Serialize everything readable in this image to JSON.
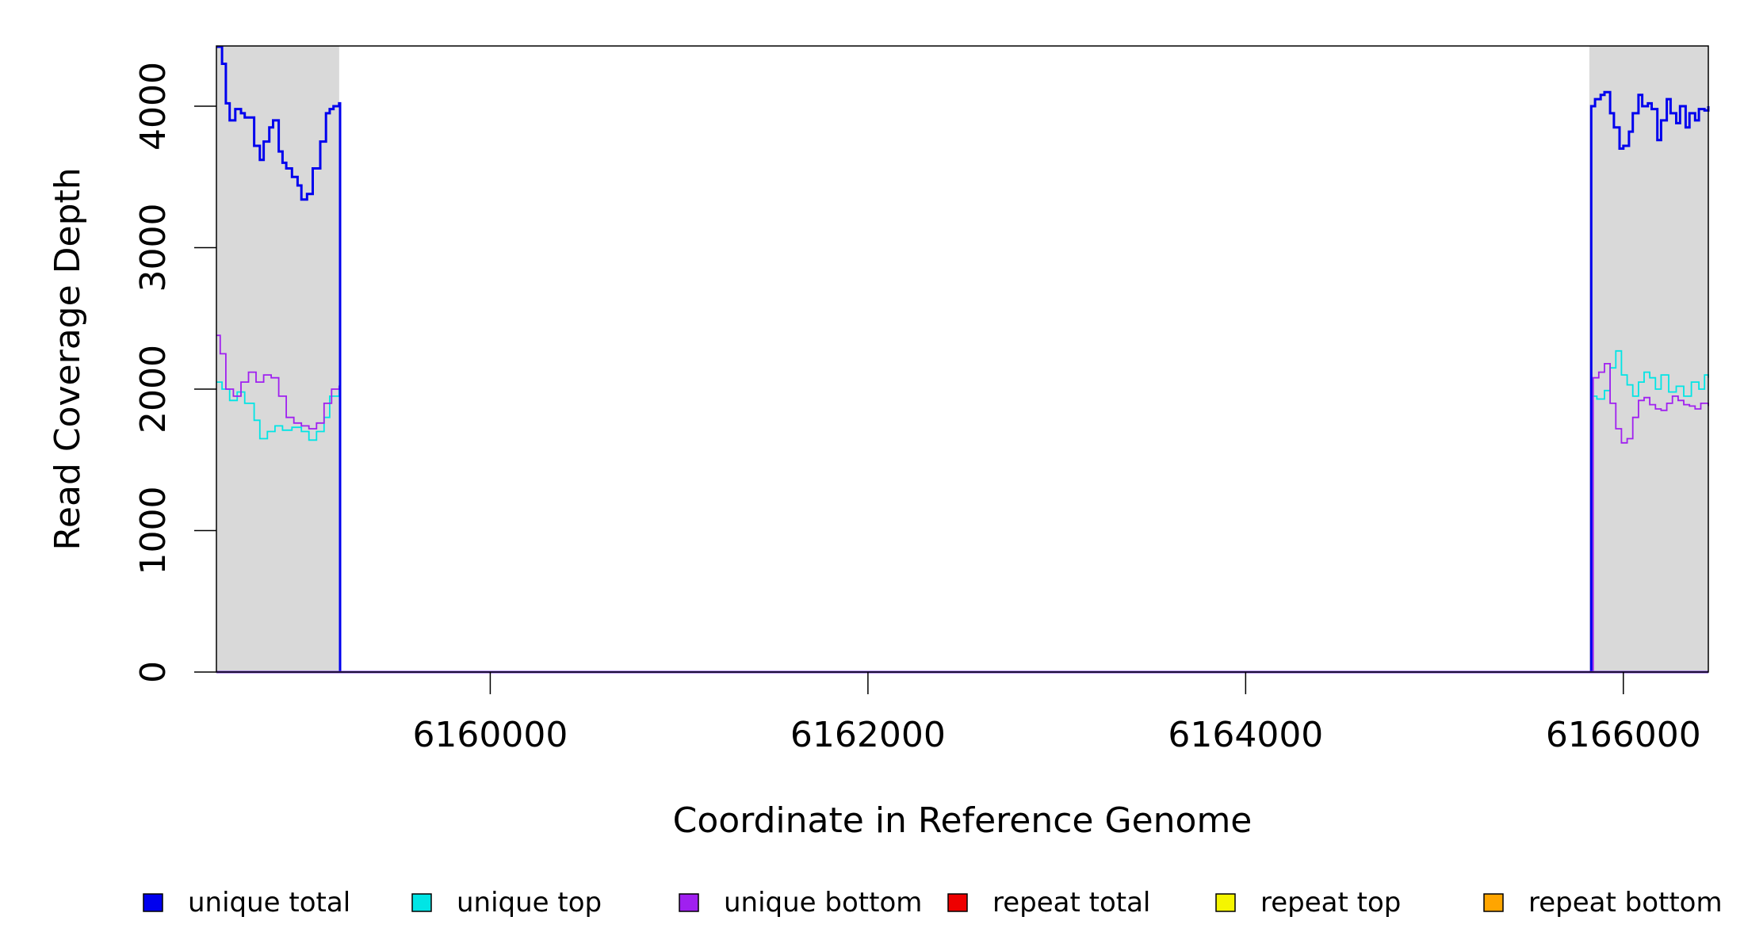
{
  "chart_data": {
    "type": "line",
    "title": "",
    "xlabel": "Coordinate in Reference Genome",
    "ylabel": "Read Coverage Depth",
    "xlim": [
      6158550,
      6166450
    ],
    "ylim": [
      0,
      4420
    ],
    "xticks": [
      6160000,
      6162000,
      6164000,
      6166000
    ],
    "xtick_labels": [
      "6160000",
      "6162000",
      "6164000",
      "6166000"
    ],
    "yticks": [
      0,
      1000,
      2000,
      3000,
      4000
    ],
    "ytick_labels": [
      "0",
      "1000",
      "2000",
      "3000",
      "4000"
    ],
    "grid": false,
    "legend": "bottom",
    "shaded_regions": [
      {
        "start": 6158550,
        "end": 6159200,
        "color": "#d9d9d9"
      },
      {
        "start": 6165820,
        "end": 6166450,
        "color": "#d9d9d9"
      }
    ],
    "series": [
      {
        "name": "unique total",
        "color": "#0000ee",
        "x": [
          6158550,
          6158580,
          6158600,
          6158620,
          6158650,
          6158680,
          6158700,
          6158750,
          6158780,
          6158800,
          6158830,
          6158850,
          6158880,
          6158900,
          6158920,
          6158950,
          6158980,
          6159000,
          6159030,
          6159060,
          6159100,
          6159130,
          6159150,
          6159170,
          6159200,
          6159205,
          6165820,
          6165830,
          6165850,
          6165880,
          6165900,
          6165930,
          6165950,
          6165980,
          6166000,
          6166030,
          6166050,
          6166080,
          6166100,
          6166130,
          6166150,
          6166180,
          6166200,
          6166230,
          6166250,
          6166280,
          6166300,
          6166330,
          6166350,
          6166380,
          6166400,
          6166430,
          6166450
        ],
        "y": [
          4420,
          4300,
          4020,
          3900,
          3980,
          3950,
          3920,
          3720,
          3620,
          3750,
          3850,
          3900,
          3680,
          3600,
          3560,
          3500,
          3440,
          3340,
          3380,
          3560,
          3750,
          3950,
          3980,
          4000,
          4020,
          0,
          0,
          4000,
          4050,
          4080,
          4100,
          3950,
          3850,
          3700,
          3720,
          3820,
          3950,
          4080,
          4000,
          4020,
          3980,
          3760,
          3900,
          4050,
          3950,
          3880,
          4000,
          3850,
          3950,
          3900,
          3980,
          3970,
          4000
        ]
      },
      {
        "name": "unique top",
        "color": "#00e5e5",
        "x": [
          6158550,
          6158580,
          6158620,
          6158660,
          6158700,
          6158750,
          6158780,
          6158820,
          6158860,
          6158900,
          6158950,
          6159000,
          6159040,
          6159080,
          6159120,
          6159150,
          6159200,
          6159205,
          6165820,
          6165830,
          6165860,
          6165900,
          6165930,
          6165960,
          6165990,
          6166020,
          6166050,
          6166080,
          6166110,
          6166140,
          6166170,
          6166200,
          6166240,
          6166280,
          6166320,
          6166360,
          6166400,
          6166430,
          6166450
        ],
        "y": [
          2050,
          2000,
          1920,
          1980,
          1900,
          1780,
          1650,
          1700,
          1740,
          1710,
          1730,
          1700,
          1640,
          1700,
          1800,
          1950,
          2000,
          0,
          0,
          1950,
          1930,
          1990,
          2150,
          2270,
          2100,
          2030,
          1950,
          2050,
          2120,
          2080,
          2000,
          2100,
          1980,
          2020,
          1950,
          2050,
          2000,
          2100,
          2080
        ]
      },
      {
        "name": "unique bottom",
        "color": "#a020f0",
        "x": [
          6158550,
          6158570,
          6158600,
          6158640,
          6158680,
          6158720,
          6158760,
          6158800,
          6158840,
          6158880,
          6158920,
          6158960,
          6159000,
          6159040,
          6159080,
          6159120,
          6159160,
          6159200,
          6159205,
          6165820,
          6165840,
          6165870,
          6165900,
          6165930,
          6165960,
          6165990,
          6166020,
          6166050,
          6166080,
          6166110,
          6166140,
          6166170,
          6166200,
          6166230,
          6166260,
          6166290,
          6166320,
          6166350,
          6166380,
          6166410,
          6166450
        ],
        "y": [
          2380,
          2250,
          2000,
          1950,
          2050,
          2120,
          2050,
          2100,
          2080,
          1950,
          1800,
          1760,
          1740,
          1720,
          1760,
          1900,
          2000,
          2020,
          0,
          0,
          2080,
          2120,
          2180,
          1900,
          1720,
          1620,
          1650,
          1800,
          1920,
          1940,
          1890,
          1860,
          1850,
          1900,
          1950,
          1920,
          1890,
          1880,
          1860,
          1900,
          1880
        ]
      },
      {
        "name": "repeat total",
        "color": "#ee0000",
        "x": [
          6158550,
          6166450
        ],
        "y": [
          0,
          0
        ]
      },
      {
        "name": "repeat top",
        "color": "#f5f500",
        "x": [
          6158550,
          6166450
        ],
        "y": [
          0,
          0
        ]
      },
      {
        "name": "repeat bottom",
        "color": "#ffa500",
        "x": [
          6158550,
          6166450
        ],
        "y": [
          0,
          0
        ]
      }
    ]
  }
}
